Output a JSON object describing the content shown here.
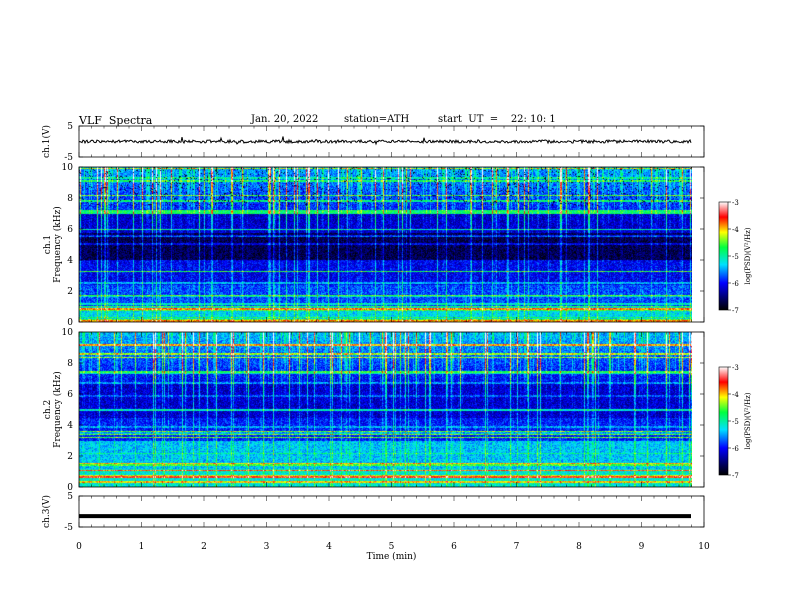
{
  "header": {
    "title": "VLF  Spectra",
    "date": "Jan. 20, 2022",
    "station": "station=ATH",
    "start": "start  UT  =    22: 10: 1"
  },
  "chart_data": {
    "type": "heatmap",
    "xlabel": "Time  (min)",
    "xlim": [
      0,
      10
    ],
    "xticks": [
      "0",
      "1",
      "2",
      "3",
      "4",
      "5",
      "6",
      "7",
      "8",
      "9",
      "10"
    ],
    "data_end_min": 9.8,
    "panels": [
      {
        "id": "ch1_waveform",
        "type": "line",
        "ylabel": "ch.1(V)",
        "ylim": [
          -5,
          5
        ],
        "yticks": [
          "5",
          "-5"
        ],
        "level": 0,
        "noise_amplitude": 0.5
      },
      {
        "id": "ch1_spectrogram",
        "type": "heatmap",
        "ylabel_top": "ch.1",
        "ylabel": "Frequency  (kHz)",
        "ylim": [
          0,
          10
        ],
        "yticks": [
          "0",
          "2",
          "4",
          "6",
          "8",
          "10"
        ],
        "colorbar": {
          "label": "log(PSD)(V²/Hz)",
          "range": [
            -7,
            -3
          ],
          "ticks": [
            "-3",
            "-4",
            "-5",
            "-6",
            "-7"
          ]
        }
      },
      {
        "id": "ch2_spectrogram",
        "type": "heatmap",
        "ylabel_top": "ch.2",
        "ylabel": "Frequency  (kHz)",
        "ylim": [
          0,
          10
        ],
        "yticks": [
          "0",
          "2",
          "4",
          "6",
          "8",
          "10"
        ],
        "colorbar": {
          "label": "log(PSD)(V²/Hz)",
          "range": [
            -7,
            -3
          ],
          "ticks": [
            "-3",
            "-4",
            "-5",
            "-6",
            "-7"
          ]
        }
      },
      {
        "id": "ch3_waveform",
        "type": "line",
        "ylabel": "ch.3(V)",
        "ylim": [
          -5,
          5
        ],
        "yticks": [
          "5",
          "-5"
        ],
        "level": -1.5,
        "noise_amplitude": 0
      }
    ]
  }
}
